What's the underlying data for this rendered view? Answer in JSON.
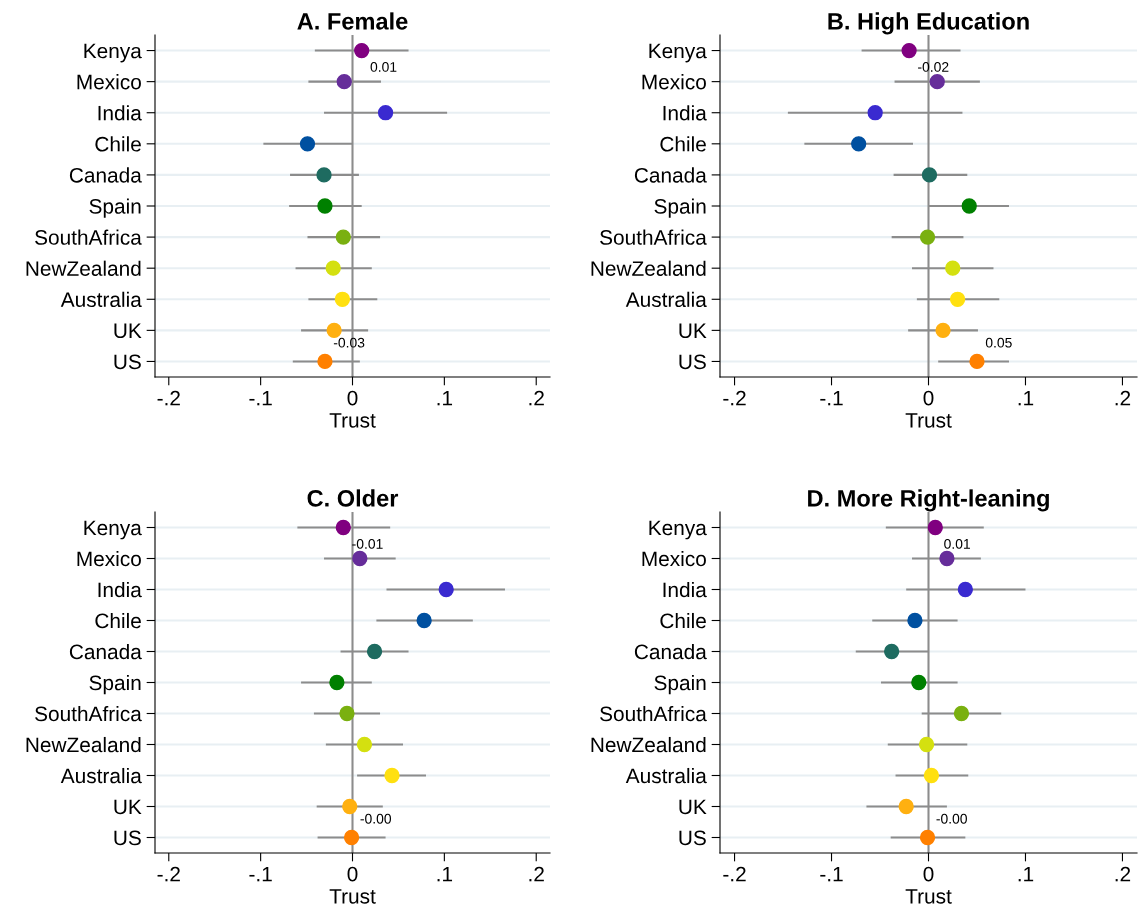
{
  "chart_data": [
    {
      "type": "scatter",
      "title": "A. Female",
      "xlabel": "Trust",
      "orientation": "horizontal",
      "categories": [
        "Kenya",
        "Mexico",
        "India",
        "Chile",
        "Canada",
        "Spain",
        "SouthAfrica",
        "NewZealand",
        "Australia",
        "UK",
        "US"
      ],
      "values": [
        0.01,
        -0.009,
        0.036,
        -0.049,
        -0.031,
        -0.03,
        -0.01,
        -0.021,
        -0.011,
        -0.02,
        -0.03
      ],
      "errors": [
        [
          -0.041,
          0.061
        ],
        [
          -0.048,
          0.031
        ],
        [
          -0.031,
          0.103
        ],
        [
          -0.097,
          0.0
        ],
        [
          -0.068,
          0.007
        ],
        [
          -0.069,
          0.01
        ],
        [
          -0.049,
          0.03
        ],
        [
          -0.062,
          0.021
        ],
        [
          -0.048,
          0.027
        ],
        [
          -0.056,
          0.017
        ],
        [
          -0.065,
          0.008
        ]
      ],
      "value_labels": [
        "0.01",
        null,
        null,
        null,
        null,
        null,
        null,
        null,
        null,
        null,
        "-0.03"
      ],
      "colors": [
        "#800080",
        "#662d9a",
        "#3a2ad0",
        "#0050a0",
        "#1e6b60",
        "#008000",
        "#7ab010",
        "#d4e010",
        "#ffe010",
        "#ffb010",
        "#ff8000"
      ],
      "xlim": [
        -0.215,
        0.215
      ],
      "xticks": [
        {
          "value": -0.2,
          "label": "-.2"
        },
        {
          "value": -0.1,
          "label": "-.1"
        },
        0,
        {
          "value": 0.1,
          "label": ".1"
        },
        {
          "value": 0.2,
          "label": ".2"
        }
      ],
      "ref_lines": [
        {
          "axis": "x",
          "value": 0,
          "color": "#8c8c8c"
        }
      ],
      "grid": "y",
      "marker": "circle"
    },
    {
      "type": "scatter",
      "title": "B. High Education",
      "xlabel": "Trust",
      "orientation": "horizontal",
      "categories": [
        "Kenya",
        "Mexico",
        "India",
        "Chile",
        "Canada",
        "Spain",
        "SouthAfrica",
        "NewZealand",
        "Australia",
        "UK",
        "US"
      ],
      "values": [
        -0.02,
        0.009,
        -0.055,
        -0.072,
        0.001,
        0.042,
        -0.001,
        0.025,
        0.03,
        0.015,
        0.05
      ],
      "errors": [
        [
          -0.069,
          0.033
        ],
        [
          -0.035,
          0.053
        ],
        [
          -0.145,
          0.035
        ],
        [
          -0.128,
          -0.016
        ],
        [
          -0.036,
          0.04
        ],
        [
          0.0,
          0.083
        ],
        [
          -0.038,
          0.036
        ],
        [
          -0.017,
          0.067
        ],
        [
          -0.012,
          0.073
        ],
        [
          -0.021,
          0.051
        ],
        [
          0.01,
          0.083
        ]
      ],
      "value_labels": [
        "-0.02",
        null,
        null,
        null,
        null,
        null,
        null,
        null,
        null,
        null,
        "0.05"
      ],
      "colors": [
        "#800080",
        "#662d9a",
        "#3a2ad0",
        "#0050a0",
        "#1e6b60",
        "#008000",
        "#7ab010",
        "#d4e010",
        "#ffe010",
        "#ffb010",
        "#ff8000"
      ],
      "xlim": [
        -0.215,
        0.215
      ],
      "xticks": [
        {
          "value": -0.2,
          "label": "-.2"
        },
        {
          "value": -0.1,
          "label": "-.1"
        },
        0,
        {
          "value": 0.1,
          "label": ".1"
        },
        {
          "value": 0.2,
          "label": ".2"
        }
      ],
      "ref_lines": [
        {
          "axis": "x",
          "value": 0,
          "color": "#8c8c8c"
        }
      ],
      "grid": "y",
      "marker": "circle"
    },
    {
      "type": "scatter",
      "title": "C. Older",
      "xlabel": "Trust",
      "orientation": "horizontal",
      "categories": [
        "Kenya",
        "Mexico",
        "India",
        "Chile",
        "Canada",
        "Spain",
        "SouthAfrica",
        "NewZealand",
        "Australia",
        "UK",
        "US"
      ],
      "values": [
        -0.01,
        0.008,
        0.102,
        0.078,
        0.024,
        -0.017,
        -0.006,
        0.013,
        0.043,
        -0.003,
        -0.001
      ],
      "errors": [
        [
          -0.06,
          0.041
        ],
        [
          -0.031,
          0.047
        ],
        [
          0.037,
          0.166
        ],
        [
          0.026,
          0.131
        ],
        [
          -0.013,
          0.061
        ],
        [
          -0.056,
          0.021
        ],
        [
          -0.042,
          0.03
        ],
        [
          -0.029,
          0.055
        ],
        [
          0.005,
          0.08
        ],
        [
          -0.039,
          0.033
        ],
        [
          -0.038,
          0.036
        ]
      ],
      "value_labels": [
        "-0.01",
        null,
        null,
        null,
        null,
        null,
        null,
        null,
        null,
        null,
        "-0.00"
      ],
      "colors": [
        "#800080",
        "#662d9a",
        "#3a2ad0",
        "#0050a0",
        "#1e6b60",
        "#008000",
        "#7ab010",
        "#d4e010",
        "#ffe010",
        "#ffb010",
        "#ff8000"
      ],
      "xlim": [
        -0.215,
        0.215
      ],
      "xticks": [
        {
          "value": -0.2,
          "label": "-.2"
        },
        {
          "value": -0.1,
          "label": "-.1"
        },
        0,
        {
          "value": 0.1,
          "label": ".1"
        },
        {
          "value": 0.2,
          "label": ".2"
        }
      ],
      "ref_lines": [
        {
          "axis": "x",
          "value": 0,
          "color": "#8c8c8c"
        }
      ],
      "grid": "y",
      "marker": "circle"
    },
    {
      "type": "scatter",
      "title": "D. More Right-leaning",
      "xlabel": "Trust",
      "orientation": "horizontal",
      "categories": [
        "Kenya",
        "Mexico",
        "India",
        "Chile",
        "Canada",
        "Spain",
        "SouthAfrica",
        "NewZealand",
        "Australia",
        "UK",
        "US"
      ],
      "values": [
        0.007,
        0.019,
        0.038,
        -0.014,
        -0.038,
        -0.01,
        0.034,
        -0.002,
        0.003,
        -0.023,
        -0.001
      ],
      "errors": [
        [
          -0.044,
          0.057
        ],
        [
          -0.017,
          0.054
        ],
        [
          -0.023,
          0.1
        ],
        [
          -0.058,
          0.03
        ],
        [
          -0.075,
          0.0
        ],
        [
          -0.049,
          0.03
        ],
        [
          -0.007,
          0.075
        ],
        [
          -0.042,
          0.04
        ],
        [
          -0.034,
          0.041
        ],
        [
          -0.064,
          0.019
        ],
        [
          -0.039,
          0.038
        ]
      ],
      "value_labels": [
        "0.01",
        null,
        null,
        null,
        null,
        null,
        null,
        null,
        null,
        null,
        "-0.00"
      ],
      "colors": [
        "#800080",
        "#662d9a",
        "#3a2ad0",
        "#0050a0",
        "#1e6b60",
        "#008000",
        "#7ab010",
        "#d4e010",
        "#ffe010",
        "#ffb010",
        "#ff8000"
      ],
      "xlim": [
        -0.215,
        0.215
      ],
      "xticks": [
        {
          "value": -0.2,
          "label": "-.2"
        },
        {
          "value": -0.1,
          "label": "-.1"
        },
        0,
        {
          "value": 0.1,
          "label": ".1"
        },
        {
          "value": 0.2,
          "label": ".2"
        }
      ],
      "ref_lines": [
        {
          "axis": "x",
          "value": 0,
          "color": "#8c8c8c"
        }
      ],
      "grid": "y",
      "marker": "circle"
    }
  ]
}
